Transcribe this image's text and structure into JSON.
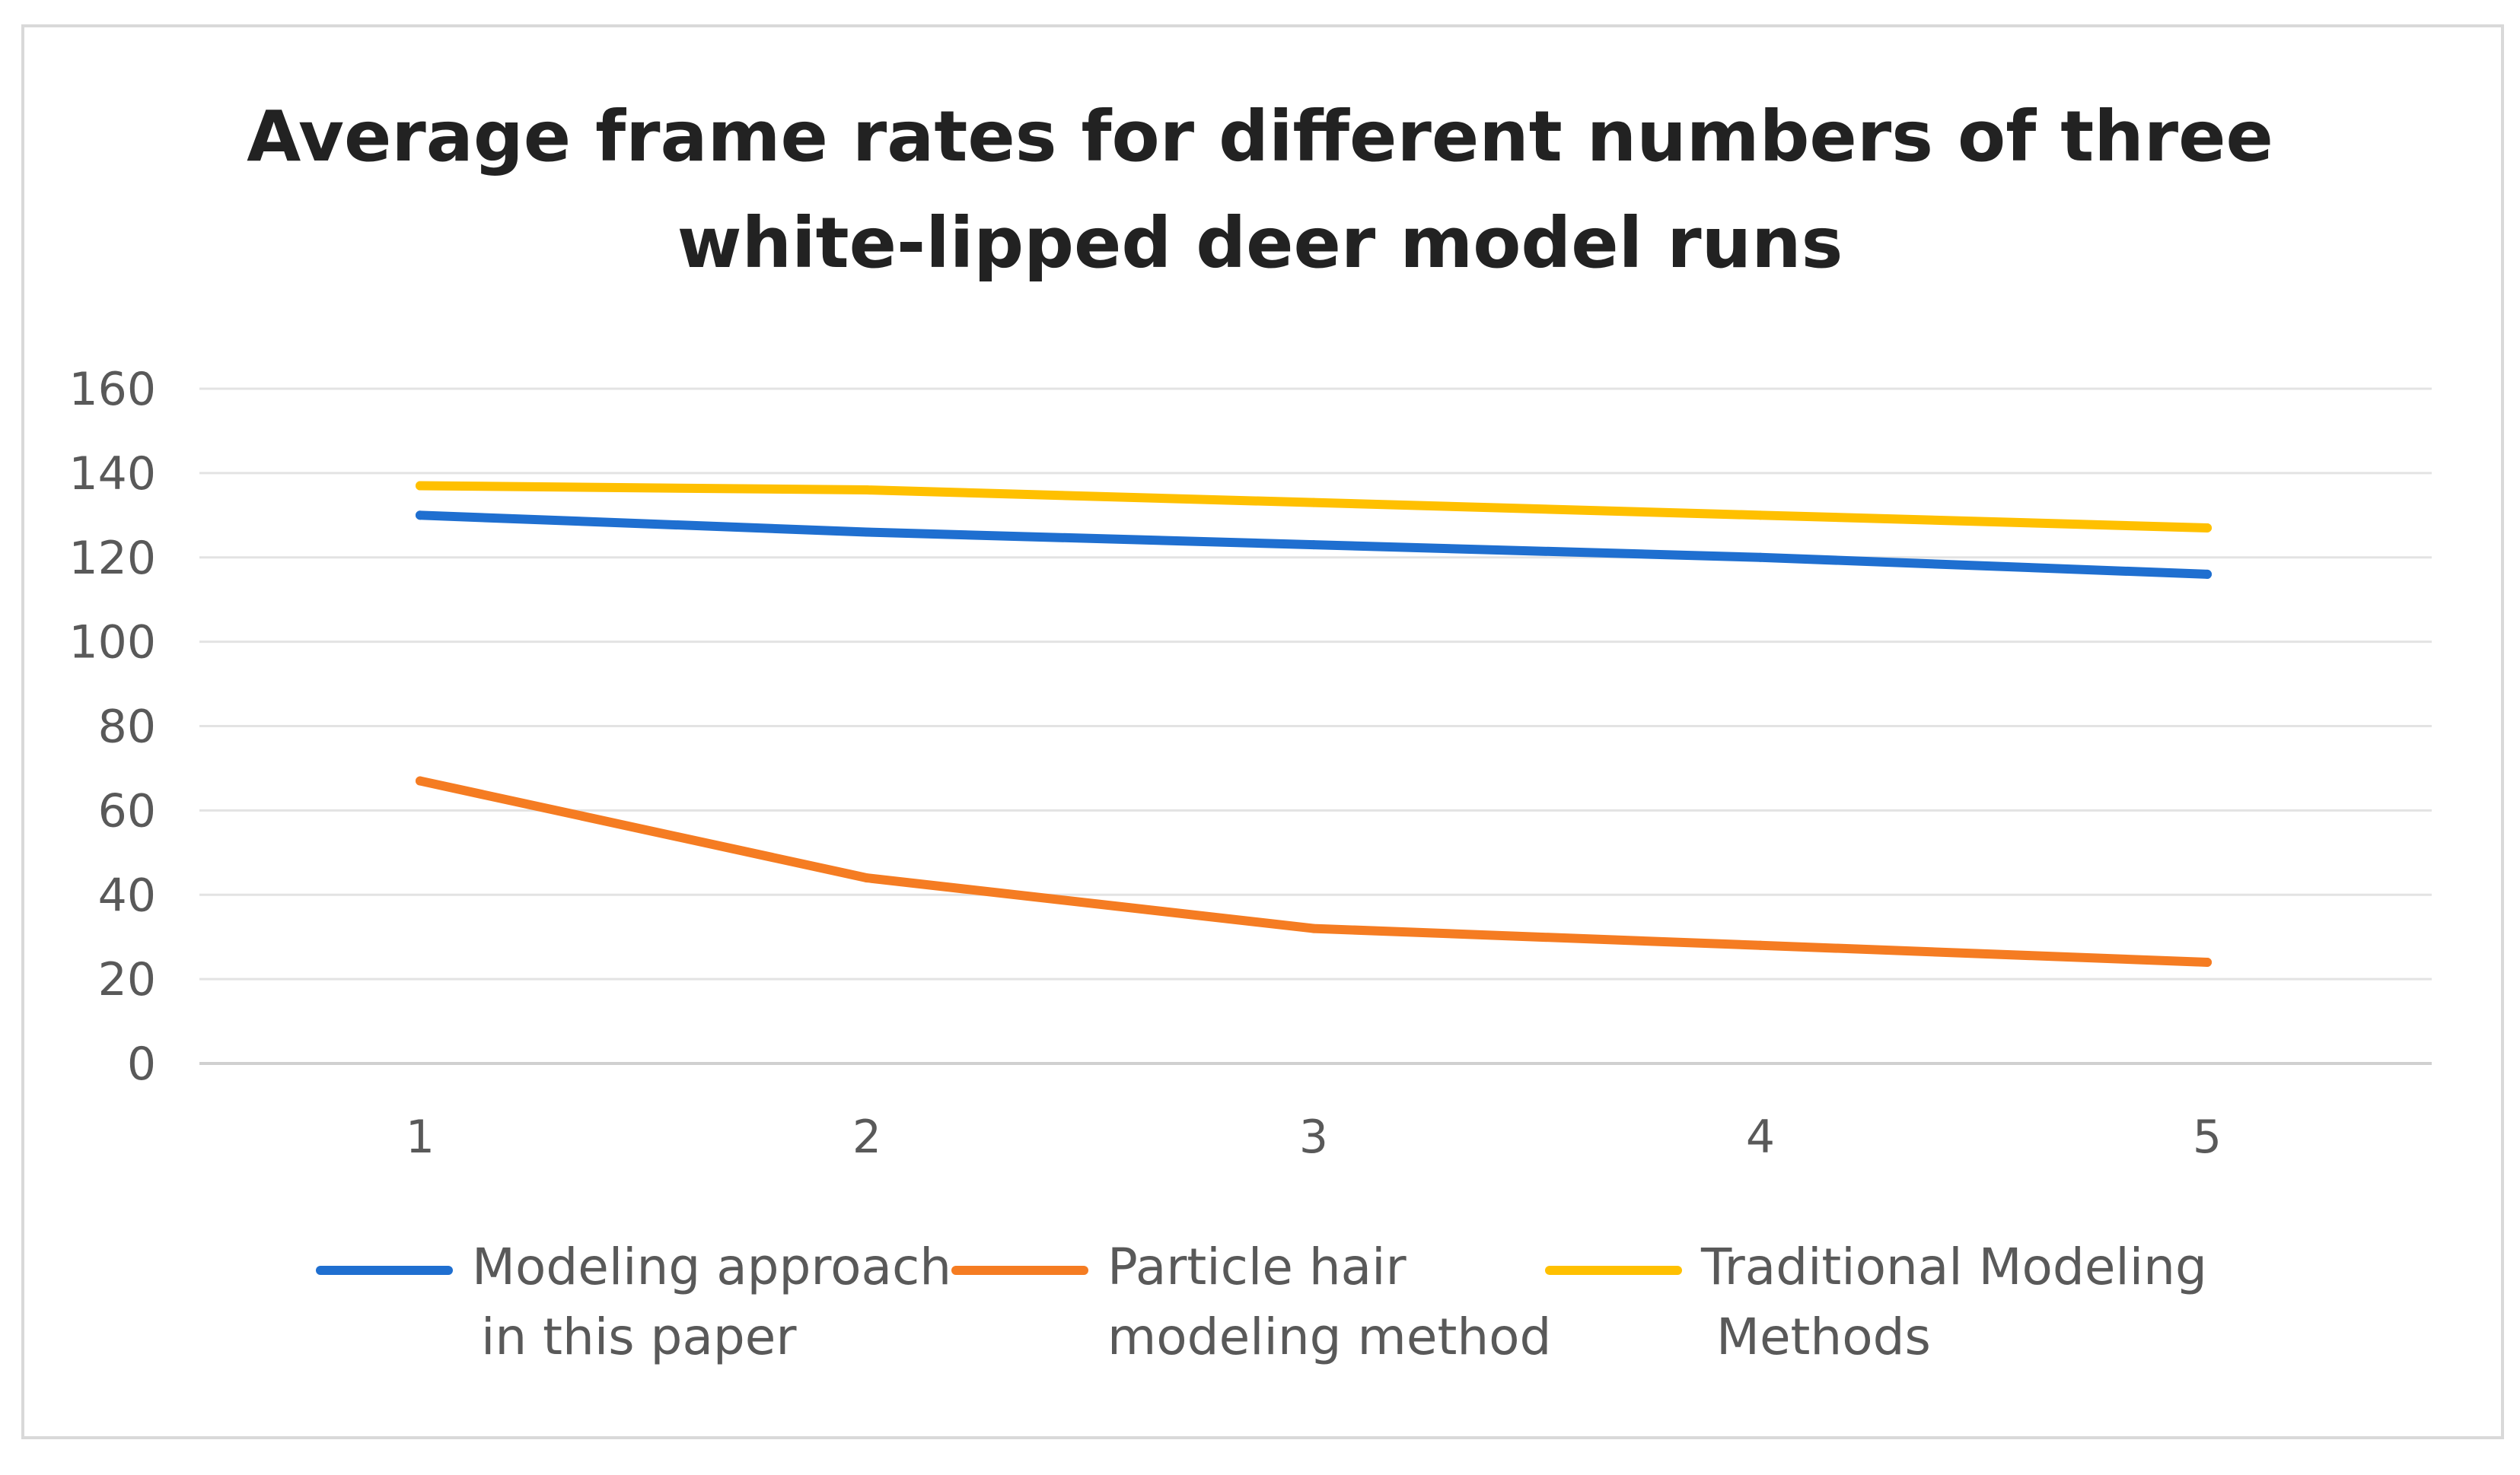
{
  "chart_data": {
    "type": "line",
    "title_lines": [
      "Average frame rates for different numbers of three",
      "white-lipped deer model runs"
    ],
    "categories": [
      "1",
      "2",
      "3",
      "4",
      "5"
    ],
    "ylim": [
      0,
      160
    ],
    "yticks": [
      "0",
      "20",
      "40",
      "60",
      "80",
      "100",
      "120",
      "140",
      "160"
    ],
    "ytick_values": [
      0,
      20,
      40,
      60,
      80,
      100,
      120,
      140,
      160
    ],
    "grid": true,
    "legend_position": "bottom",
    "series": [
      {
        "name": "Modeling approach in this paper",
        "name_lines": [
          "Modeling approach",
          "in this paper"
        ],
        "color": "#1f6fd0",
        "values": [
          130,
          126,
          123,
          120,
          116
        ]
      },
      {
        "name": "Particle hair modeling method",
        "name_lines": [
          "Particle hair",
          "modeling method"
        ],
        "color": "#f57c22",
        "values": [
          67,
          44,
          32,
          28,
          24
        ]
      },
      {
        "name": "Traditional Modeling Methods",
        "name_lines": [
          "Traditional Modeling",
          "Methods"
        ],
        "color": "#ffc000",
        "values": [
          137,
          136,
          133,
          130,
          127
        ]
      }
    ]
  }
}
